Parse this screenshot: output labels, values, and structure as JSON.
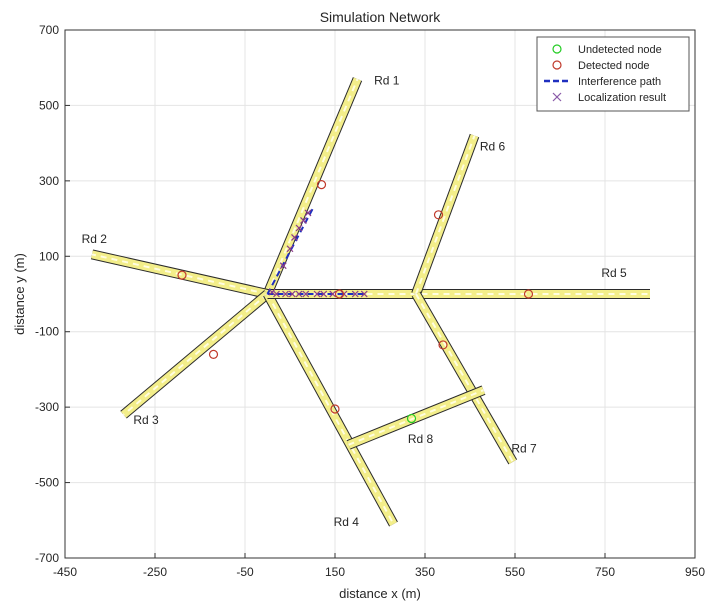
{
  "chart_data": {
    "type": "line",
    "title": "Simulation Network",
    "xlabel": "distance x (m)",
    "ylabel": "distance y (m)",
    "xlim": [
      -450,
      950
    ],
    "ylim": [
      -700,
      700
    ],
    "xticks": [
      -450,
      -250,
      -50,
      150,
      350,
      550,
      750,
      950
    ],
    "yticks": [
      -700,
      -500,
      -300,
      -100,
      100,
      300,
      500,
      700
    ],
    "grid": true,
    "legend_position": "top-right",
    "legend": [
      {
        "label": "Undetected node",
        "marker": "circle",
        "color": "#22cc22"
      },
      {
        "label": "Detected node",
        "marker": "circle",
        "color": "#c0392b"
      },
      {
        "label": "Interference path",
        "marker": "dashed-line",
        "color": "#1f2fbf"
      },
      {
        "label": "Localization result",
        "marker": "cross",
        "color": "#8a5aa8"
      }
    ],
    "roads": [
      {
        "name": "Rd 1",
        "points": [
          [
            0,
            0
          ],
          [
            200,
            570
          ]
        ],
        "label_at": [
          265,
          555
        ]
      },
      {
        "name": "Rd 2",
        "points": [
          [
            0,
            0
          ],
          [
            -390,
            105
          ]
        ],
        "label_at": [
          -385,
          135
        ]
      },
      {
        "name": "Rd 3",
        "points": [
          [
            0,
            0
          ],
          [
            -320,
            -320
          ]
        ],
        "label_at": [
          -270,
          -345
        ]
      },
      {
        "name": "Rd 4",
        "points": [
          [
            0,
            0
          ],
          [
            280,
            -610
          ]
        ],
        "label_at": [
          175,
          -615
        ]
      },
      {
        "name": "Rd 5",
        "points": [
          [
            0,
            0
          ],
          [
            850,
            0
          ]
        ],
        "label_at": [
          770,
          45
        ]
      },
      {
        "name": "Rd 6",
        "points": [
          [
            330,
            0
          ],
          [
            460,
            420
          ]
        ],
        "label_at": [
          500,
          380
        ]
      },
      {
        "name": "Rd 7",
        "points": [
          [
            330,
            0
          ],
          [
            545,
            -445
          ]
        ],
        "label_at": [
          570,
          -420
        ]
      },
      {
        "name": "Rd 8",
        "points": [
          [
            180,
            -400
          ],
          [
            480,
            -255
          ]
        ],
        "label_at": [
          340,
          -395
        ]
      }
    ],
    "undetected_nodes": [
      [
        320,
        -330
      ]
    ],
    "detected_nodes": [
      [
        120,
        290
      ],
      [
        -190,
        50
      ],
      [
        -120,
        -160
      ],
      [
        160,
        0
      ],
      [
        380,
        210
      ],
      [
        390,
        -135
      ],
      [
        150,
        -305
      ],
      [
        580,
        0
      ]
    ],
    "interference_paths": [
      {
        "points": [
          [
            0,
            0
          ],
          [
            100,
            225
          ]
        ]
      },
      {
        "points": [
          [
            0,
            0
          ],
          [
            220,
            0
          ]
        ]
      }
    ],
    "localization_results": [
      [
        10,
        5
      ],
      [
        35,
        75
      ],
      [
        50,
        120
      ],
      [
        60,
        150
      ],
      [
        70,
        175
      ],
      [
        80,
        195
      ],
      [
        90,
        215
      ],
      [
        20,
        0
      ],
      [
        40,
        0
      ],
      [
        55,
        0
      ],
      [
        70,
        0
      ],
      [
        85,
        0
      ],
      [
        110,
        0
      ],
      [
        125,
        0
      ],
      [
        145,
        0
      ],
      [
        170,
        0
      ],
      [
        195,
        0
      ],
      [
        215,
        0
      ]
    ]
  }
}
